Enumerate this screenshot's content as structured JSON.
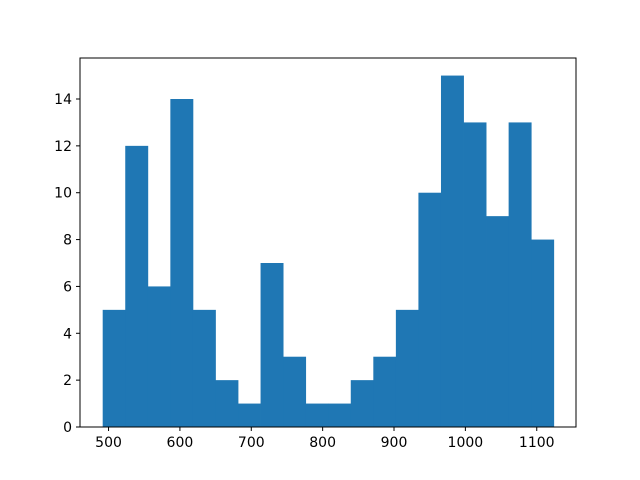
{
  "chart_data": {
    "type": "bar",
    "subtype": "histogram",
    "bin_edges": [
      491.8,
      523.4,
      555.0,
      586.6,
      618.2,
      649.8,
      681.4,
      713.0,
      744.6,
      776.2,
      807.8,
      839.4,
      871.0,
      902.6,
      934.2,
      965.8,
      997.4,
      1029.0,
      1060.6,
      1092.2,
      1123.8
    ],
    "counts": [
      5,
      12,
      6,
      14,
      5,
      2,
      1,
      7,
      3,
      1,
      1,
      2,
      3,
      5,
      10,
      15,
      13,
      9,
      13,
      8
    ],
    "xlim": [
      460,
      1155
    ],
    "ylim": [
      0,
      15.75
    ],
    "xticks": [
      500,
      600,
      700,
      800,
      900,
      1000,
      1100
    ],
    "yticks": [
      0,
      2,
      4,
      6,
      8,
      10,
      12,
      14
    ],
    "title": "",
    "xlabel": "",
    "ylabel": "",
    "grid": false,
    "colors": {
      "bar": "#1f77b4",
      "axis": "#000000"
    }
  }
}
